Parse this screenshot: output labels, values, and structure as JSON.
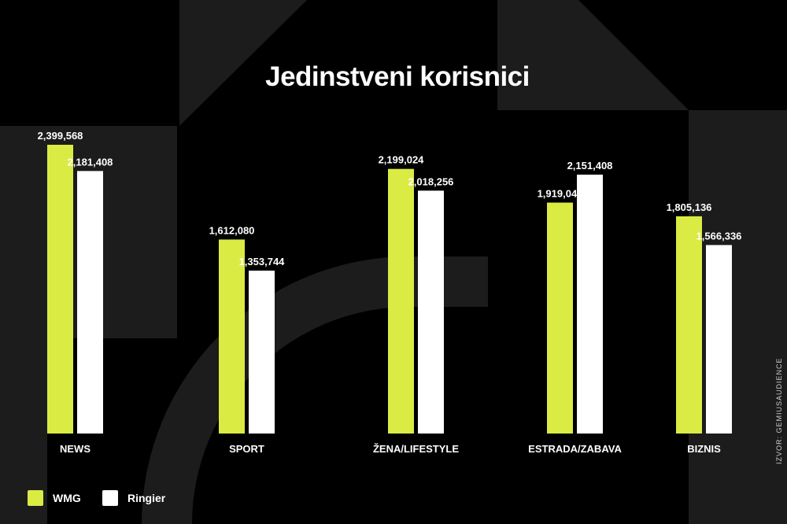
{
  "chart_data": {
    "type": "bar",
    "title": "Jedinstveni korisnici",
    "categories": [
      "NEWS",
      "SPORT",
      "ŽENA/LIFESTYLE",
      "ESTRADA/ZABAVA",
      "BIZNIS"
    ],
    "series": [
      {
        "name": "WMG",
        "values": [
          2399568,
          1612080,
          2199024,
          1919040,
          1805136
        ],
        "labels": [
          "2,399,568",
          "1,612,080",
          "2,199,024",
          "1,919,040",
          "1,805,136"
        ],
        "color": "#DAEB44"
      },
      {
        "name": "Ringier",
        "values": [
          2181408,
          1353744,
          2018256,
          2151408,
          1566336
        ],
        "labels": [
          "2,181,408",
          "1,353,744",
          "2,018,256",
          "2,151,408",
          "1,566,336"
        ],
        "color": "#FFFFFF"
      }
    ],
    "ylim": [
      0,
      2550000
    ],
    "grid": false,
    "legend_position": "bottom-left",
    "source": "IZVOR: GEMIUSAUDIENCE"
  },
  "colors": {
    "background": "#000000",
    "shape": "#1c1c1c",
    "text": "#FFFFFF"
  }
}
